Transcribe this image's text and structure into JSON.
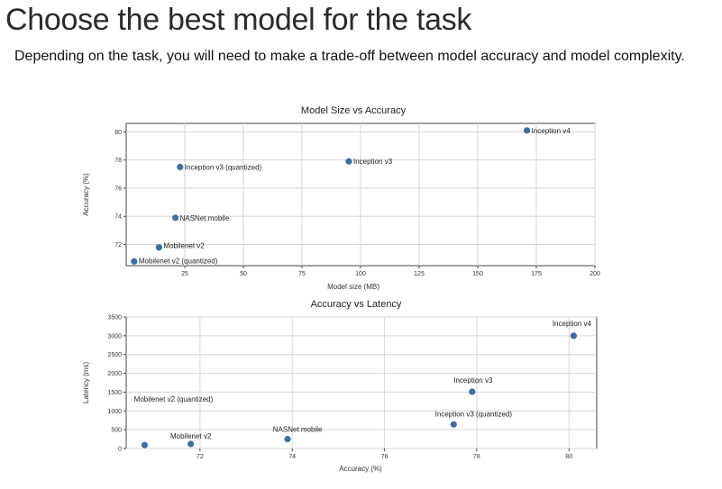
{
  "page": {
    "title": "Choose the best model for the task",
    "subtitle": "Depending on the task, you will need to make a trade-off between model accuracy and model complexity."
  },
  "colors": {
    "point": "#3d6fa0",
    "grid": "#d6d6d6",
    "frame": "#444444"
  },
  "chart_data": [
    {
      "type": "scatter",
      "title": "Model Size vs Accuracy",
      "xlabel": "Model size (MB)",
      "ylabel": "Accuracy (%)",
      "xlim": [
        0,
        200
      ],
      "ylim": [
        70.5,
        80.6
      ],
      "xticks": [
        25,
        50,
        75,
        100,
        125,
        150,
        175,
        200
      ],
      "yticks": [
        72,
        74,
        76,
        78,
        80
      ],
      "grid": true,
      "points": [
        {
          "label": "Inception v4",
          "x": 171,
          "y": 80.1
        },
        {
          "label": "Inception v3",
          "x": 95,
          "y": 77.9
        },
        {
          "label": "Inception v3 (quantized)",
          "x": 23,
          "y": 77.5
        },
        {
          "label": "NASNet mobile",
          "x": 21,
          "y": 73.9
        },
        {
          "label": "Mobilenet v2",
          "x": 14,
          "y": 71.8
        },
        {
          "label": "Mobilenet v2 (quantized)",
          "x": 3.4,
          "y": 70.8
        }
      ]
    },
    {
      "type": "scatter",
      "title": "Accuracy vs Latency",
      "xlabel": "Accuracy (%)",
      "ylabel": "Latency (ms)",
      "xlim": [
        70.4,
        80.6
      ],
      "ylim": [
        0,
        3500
      ],
      "xticks": [
        72,
        74,
        76,
        78,
        80
      ],
      "yticks": [
        0,
        500,
        1000,
        1500,
        2000,
        2500,
        3000,
        3500
      ],
      "grid": true,
      "points": [
        {
          "label": "Inception v4",
          "x": 80.1,
          "y": 3000
        },
        {
          "label": "Inception v3",
          "x": 77.9,
          "y": 1510
        },
        {
          "label": "Inception v3 (quantized)",
          "x": 77.5,
          "y": 640
        },
        {
          "label": "NASNet mobile",
          "x": 73.9,
          "y": 250
        },
        {
          "label": "Mobilenet v2",
          "x": 71.8,
          "y": 120
        },
        {
          "label": "Mobilenet v2 (quantized)",
          "x": 70.8,
          "y": 90
        }
      ]
    }
  ]
}
